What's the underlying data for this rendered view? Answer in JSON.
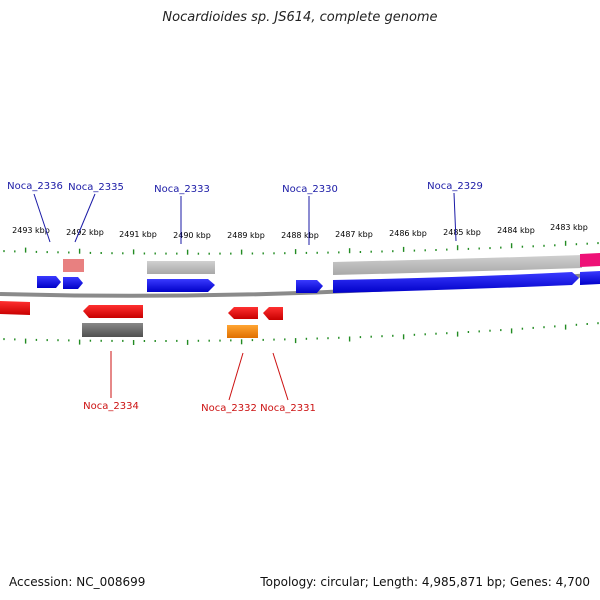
{
  "title": "Nocardioides sp. JS614, complete genome",
  "footer": {
    "accession": "Accession: NC_008699",
    "summary": "Topology: circular; Length: 4,985,871 bp; Genes: 4,700"
  },
  "ruler": {
    "unit": "kbp",
    "ticks": [
      2493,
      2492,
      2491,
      2490,
      2489,
      2488,
      2487,
      2486,
      2485,
      2484,
      2483
    ]
  },
  "colors": {
    "forward_gene": "#0000ee",
    "reverse_gene": "#ee0000",
    "forward_label": "#1a1aa6",
    "reverse_label": "#cc1111",
    "backbone": "#888888",
    "tick": "#228b22",
    "pseudo_gray": "#bbbbbb",
    "dark_gray": "#666666",
    "orange": "#ff8c00",
    "pink": "#ee1177",
    "salmon": "#e88080"
  },
  "genes": [
    {
      "label": "Noca_2336",
      "strand": "forward"
    },
    {
      "label": "Noca_2335",
      "strand": "forward"
    },
    {
      "label": "Noca_2333",
      "strand": "forward"
    },
    {
      "label": "Noca_2330",
      "strand": "forward"
    },
    {
      "label": "Noca_2329",
      "strand": "forward"
    },
    {
      "label": "Noca_2334",
      "strand": "reverse"
    },
    {
      "label": "Noca_2332",
      "strand": "reverse"
    },
    {
      "label": "Noca_2331",
      "strand": "reverse"
    }
  ]
}
